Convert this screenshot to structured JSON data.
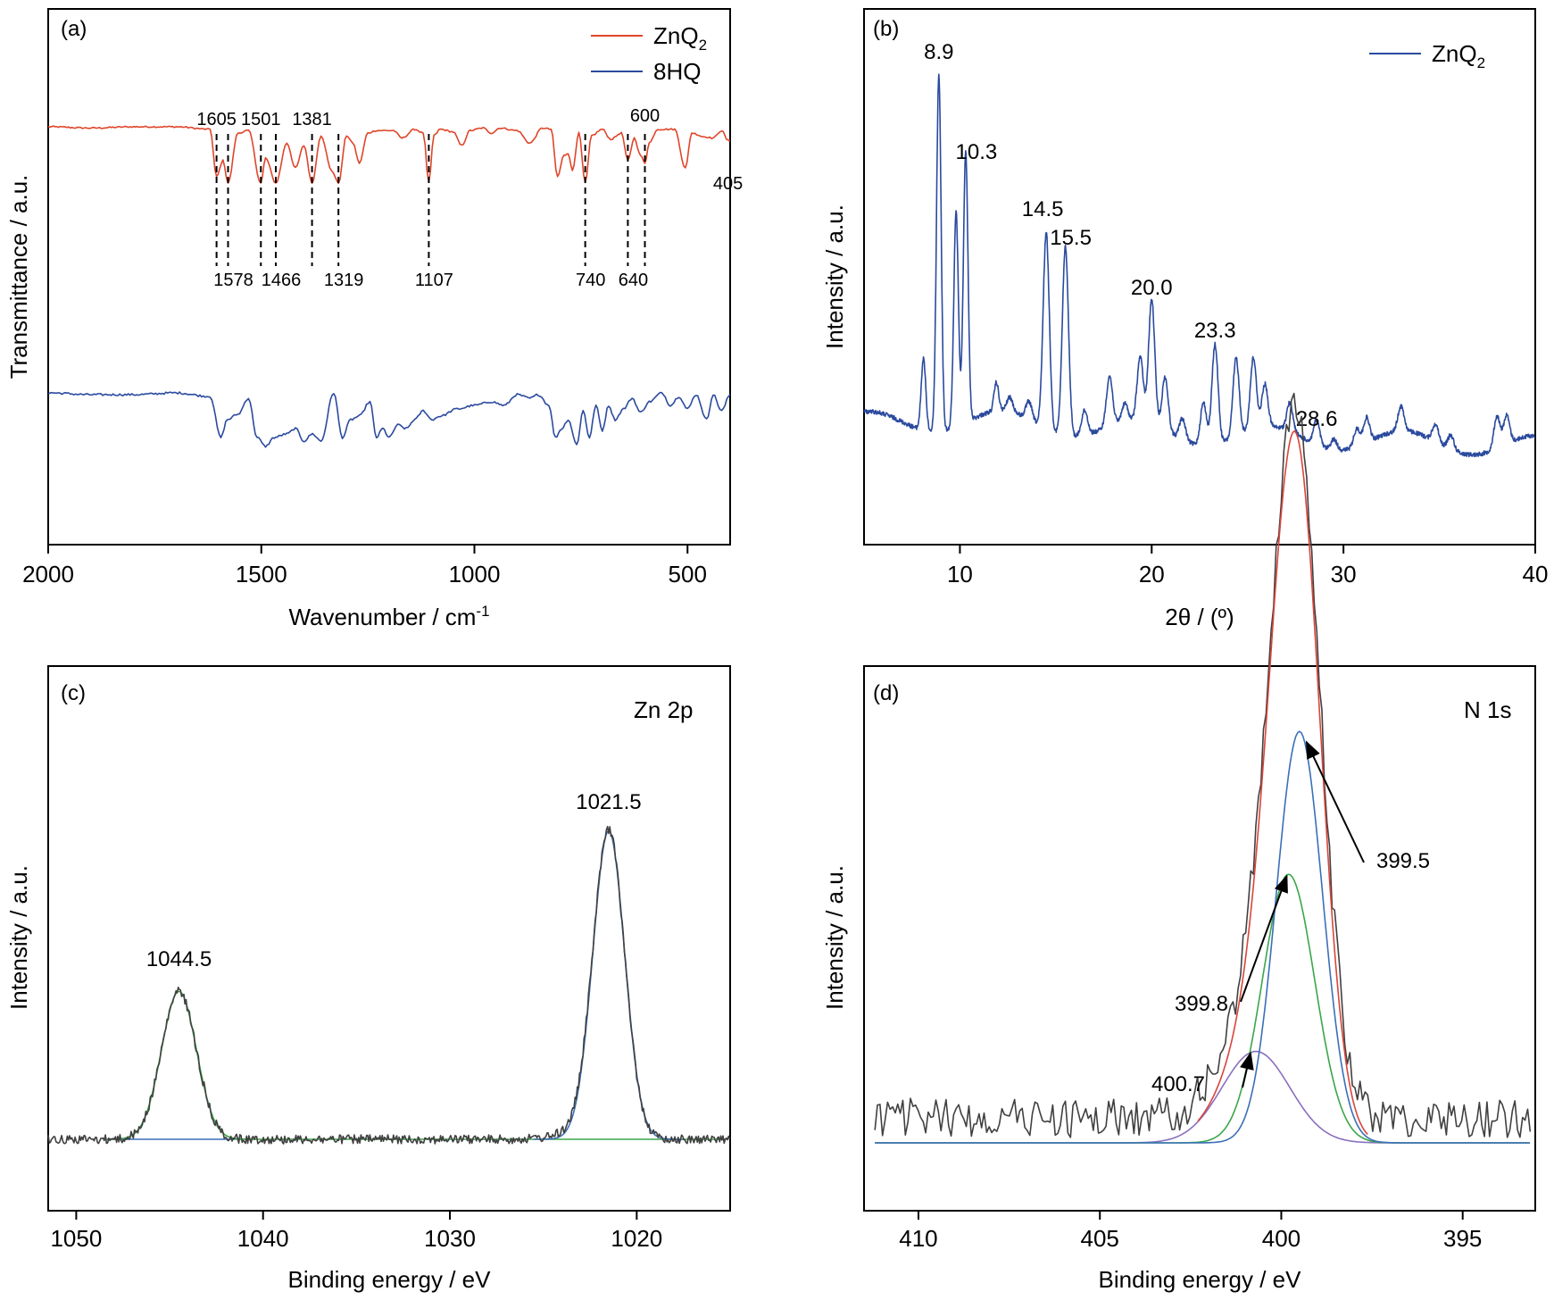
{
  "chart_data": [
    {
      "panel": "(a)",
      "type": "line",
      "xlabel": "Wavenumber / cm",
      "xlabel_sup": "-1",
      "ylabel": "Transmittance / a.u.",
      "xlim": [
        2000,
        400
      ],
      "xticks": [
        "2000",
        "1500",
        "1000",
        "500"
      ],
      "xtick_values": [
        2000,
        1500,
        1000,
        500
      ],
      "legend_position": "top-right",
      "colors": {
        "ZnQ2": "#e0452a",
        "8HQ": "#2b4a9e"
      },
      "series": [
        {
          "name": "ZnQ",
          "name_sub": "2",
          "color": "#e0452a",
          "points": [
            [
              2000,
              0.95
            ],
            [
              1900,
              0.94
            ],
            [
              1800,
              0.95
            ],
            [
              1700,
              0.95
            ],
            [
              1620,
              0.93
            ],
            [
              1605,
              0.55
            ],
            [
              1590,
              0.68
            ],
            [
              1578,
              0.5
            ],
            [
              1555,
              0.9
            ],
            [
              1530,
              0.92
            ],
            [
              1501,
              0.5
            ],
            [
              1490,
              0.7
            ],
            [
              1466,
              0.5
            ],
            [
              1440,
              0.82
            ],
            [
              1420,
              0.62
            ],
            [
              1400,
              0.8
            ],
            [
              1381,
              0.5
            ],
            [
              1360,
              0.88
            ],
            [
              1335,
              0.6
            ],
            [
              1319,
              0.5
            ],
            [
              1300,
              0.88
            ],
            [
              1285,
              0.82
            ],
            [
              1270,
              0.66
            ],
            [
              1250,
              0.9
            ],
            [
              1230,
              0.92
            ],
            [
              1190,
              0.92
            ],
            [
              1170,
              0.86
            ],
            [
              1140,
              0.93
            ],
            [
              1120,
              0.9
            ],
            [
              1107,
              0.5
            ],
            [
              1095,
              0.88
            ],
            [
              1080,
              0.93
            ],
            [
              1050,
              0.91
            ],
            [
              1030,
              0.8
            ],
            [
              1010,
              0.92
            ],
            [
              980,
              0.94
            ],
            [
              960,
              0.9
            ],
            [
              940,
              0.94
            ],
            [
              900,
              0.92
            ],
            [
              870,
              0.82
            ],
            [
              840,
              0.94
            ],
            [
              820,
              0.93
            ],
            [
              805,
              0.55
            ],
            [
              790,
              0.72
            ],
            [
              780,
              0.74
            ],
            [
              770,
              0.6
            ],
            [
              755,
              0.9
            ],
            [
              740,
              0.5
            ],
            [
              725,
              0.88
            ],
            [
              700,
              0.93
            ],
            [
              680,
              0.85
            ],
            [
              655,
              0.9
            ],
            [
              640,
              0.68
            ],
            [
              625,
              0.86
            ],
            [
              610,
              0.72
            ],
            [
              600,
              0.66
            ],
            [
              590,
              0.82
            ],
            [
              570,
              0.93
            ],
            [
              530,
              0.93
            ],
            [
              505,
              0.62
            ],
            [
              490,
              0.9
            ],
            [
              460,
              0.87
            ],
            [
              440,
              0.86
            ],
            [
              420,
              0.92
            ],
            [
              405,
              0.84
            ],
            [
              400,
              0.84
            ]
          ]
        },
        {
          "name": "8HQ",
          "color": "#2b4a9e",
          "points": [
            [
              2000,
              0.45
            ],
            [
              1900,
              0.44
            ],
            [
              1800,
              0.44
            ],
            [
              1700,
              0.45
            ],
            [
              1620,
              0.43
            ],
            [
              1595,
              0.2
            ],
            [
              1580,
              0.3
            ],
            [
              1555,
              0.33
            ],
            [
              1530,
              0.42
            ],
            [
              1510,
              0.2
            ],
            [
              1490,
              0.15
            ],
            [
              1470,
              0.2
            ],
            [
              1440,
              0.22
            ],
            [
              1420,
              0.25
            ],
            [
              1400,
              0.18
            ],
            [
              1380,
              0.22
            ],
            [
              1360,
              0.18
            ],
            [
              1330,
              0.45
            ],
            [
              1310,
              0.2
            ],
            [
              1290,
              0.3
            ],
            [
              1270,
              0.32
            ],
            [
              1245,
              0.4
            ],
            [
              1230,
              0.2
            ],
            [
              1215,
              0.25
            ],
            [
              1200,
              0.2
            ],
            [
              1180,
              0.27
            ],
            [
              1160,
              0.25
            ],
            [
              1140,
              0.3
            ],
            [
              1120,
              0.35
            ],
            [
              1100,
              0.3
            ],
            [
              1080,
              0.32
            ],
            [
              1040,
              0.36
            ],
            [
              1000,
              0.38
            ],
            [
              960,
              0.4
            ],
            [
              930,
              0.38
            ],
            [
              900,
              0.44
            ],
            [
              870,
              0.42
            ],
            [
              850,
              0.44
            ],
            [
              825,
              0.38
            ],
            [
              810,
              0.2
            ],
            [
              795,
              0.25
            ],
            [
              780,
              0.3
            ],
            [
              760,
              0.16
            ],
            [
              745,
              0.35
            ],
            [
              730,
              0.2
            ],
            [
              715,
              0.38
            ],
            [
              700,
              0.24
            ],
            [
              685,
              0.38
            ],
            [
              670,
              0.3
            ],
            [
              650,
              0.36
            ],
            [
              630,
              0.42
            ],
            [
              610,
              0.34
            ],
            [
              590,
              0.4
            ],
            [
              560,
              0.45
            ],
            [
              540,
              0.38
            ],
            [
              520,
              0.43
            ],
            [
              500,
              0.36
            ],
            [
              480,
              0.44
            ],
            [
              455,
              0.3
            ],
            [
              440,
              0.44
            ],
            [
              420,
              0.35
            ],
            [
              400,
              0.44
            ]
          ]
        }
      ],
      "peak_labels_top": [
        "1605",
        "1501",
        "1381",
        "600"
      ],
      "peak_labels_top_x": [
        1605,
        1501,
        1381,
        600
      ],
      "peak_labels_bottom": [
        "1578",
        "1466",
        "1319",
        "1107",
        "740",
        "640"
      ],
      "peak_labels_bottom_x": [
        1578,
        1466,
        1319,
        1107,
        740,
        640
      ],
      "peak_label_side": "405",
      "dashed_lines_at": [
        1605,
        1578,
        1501,
        1466,
        1381,
        1319,
        1107,
        740,
        640,
        600
      ]
    },
    {
      "panel": "(b)",
      "type": "line",
      "xlabel": "2θ / (º)",
      "ylabel": "Intensity / a.u.",
      "xlim": [
        5,
        40
      ],
      "xticks": [
        "10",
        "20",
        "30",
        "40"
      ],
      "xtick_values": [
        10,
        20,
        30,
        40
      ],
      "legend_position": "top-right",
      "series": [
        {
          "name": "ZnQ",
          "name_sub": "2",
          "color": "#2b4a9e",
          "peaks": [
            [
              8.1,
              0.2
            ],
            [
              8.9,
              1.0
            ],
            [
              9.8,
              0.6
            ],
            [
              10.3,
              0.76
            ],
            [
              11.9,
              0.08
            ],
            [
              12.6,
              0.04
            ],
            [
              13.6,
              0.05
            ],
            [
              14.5,
              0.55
            ],
            [
              15.5,
              0.53
            ],
            [
              16.5,
              0.07
            ],
            [
              17.8,
              0.14
            ],
            [
              18.6,
              0.05
            ],
            [
              19.4,
              0.18
            ],
            [
              20.0,
              0.35
            ],
            [
              20.7,
              0.15
            ],
            [
              21.6,
              0.06
            ],
            [
              22.7,
              0.12
            ],
            [
              23.3,
              0.28
            ],
            [
              24.4,
              0.22
            ],
            [
              25.3,
              0.2
            ],
            [
              25.9,
              0.12
            ],
            [
              27.2,
              0.08
            ],
            [
              28.6,
              0.07
            ],
            [
              29.5,
              0.03
            ],
            [
              30.7,
              0.05
            ],
            [
              31.2,
              0.07
            ],
            [
              33.0,
              0.07
            ],
            [
              34.8,
              0.05
            ],
            [
              35.6,
              0.04
            ],
            [
              38.0,
              0.09
            ],
            [
              38.5,
              0.08
            ]
          ]
        }
      ],
      "peak_labels": [
        "8.9",
        "10.3",
        "14.5",
        "15.5",
        "20.0",
        "23.3",
        "28.6"
      ],
      "peak_label_x": [
        8.9,
        10.3,
        14.5,
        15.5,
        20.0,
        23.3,
        28.6
      ]
    },
    {
      "panel": "(c)",
      "type": "line",
      "title_annotation": "Zn 2p",
      "xlabel": "Binding energy / eV",
      "ylabel": "Intensity / a.u.",
      "xlim": [
        1051.5,
        1015
      ],
      "xticks": [
        "1050",
        "1040",
        "1030",
        "1020"
      ],
      "xtick_values": [
        1050,
        1040,
        1030,
        1020
      ],
      "peaks": [
        {
          "center": 1044.5,
          "height": 0.46,
          "fwhm": 2.2,
          "color": "#3aa64a"
        },
        {
          "center": 1021.5,
          "height": 0.96,
          "fwhm": 2.0,
          "color": "#3a6fb8"
        }
      ],
      "colors": {
        "raw": "#404040",
        "baseline_left": "#3a6fb8",
        "baseline_right": "#3aa64a"
      },
      "peak_labels": [
        "1044.5",
        "1021.5"
      ],
      "peak_label_x": [
        1044.5,
        1021.5
      ]
    },
    {
      "panel": "(d)",
      "type": "line",
      "title_annotation": "N 1s",
      "xlabel": "Binding energy / eV",
      "ylabel": "Intensity / a.u.",
      "xlim": [
        411.5,
        393
      ],
      "xticks": [
        "410",
        "405",
        "400",
        "395"
      ],
      "xtick_values": [
        410,
        405,
        400,
        395
      ],
      "components": [
        {
          "center": 399.5,
          "height": 0.72,
          "fwhm": 1.5,
          "color": "#3a6fb8"
        },
        {
          "center": 399.8,
          "height": 0.47,
          "fwhm": 1.7,
          "color": "#3aa64a"
        },
        {
          "center": 400.7,
          "height": 0.16,
          "fwhm": 2.2,
          "color": "#8a6fc0"
        }
      ],
      "colors": {
        "raw": "#404040",
        "envelope": "#d9453a"
      },
      "peak_labels": [
        "399.5",
        "399.8",
        "400.7"
      ],
      "peak_label_x": [
        399.5,
        399.8,
        400.7
      ]
    }
  ],
  "panels": {
    "a": {
      "label": "(a)"
    },
    "b": {
      "label": "(b)"
    },
    "c": {
      "label": "(c)"
    },
    "d": {
      "label": "(d)"
    }
  }
}
